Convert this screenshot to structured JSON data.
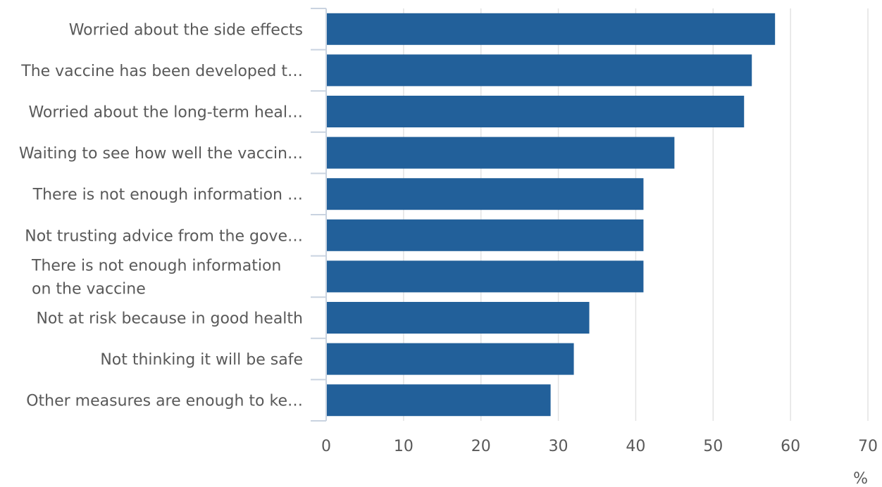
{
  "chart_data": {
    "type": "bar",
    "orientation": "horizontal",
    "title": "",
    "xlabel": "%",
    "ylabel": "",
    "xlim": [
      0,
      70
    ],
    "xticks": [
      0,
      10,
      20,
      30,
      40,
      50,
      60,
      70
    ],
    "grid": true,
    "legend": "none",
    "bar_color": "#22609a",
    "categories": [
      [
        "Worried about the side effects"
      ],
      [
        "The vaccine has been developed t…"
      ],
      [
        "Worried about the long-term heal…"
      ],
      [
        "Waiting to see how well the vaccin…"
      ],
      [
        "There is not enough information …"
      ],
      [
        "Not trusting advice from the gove…"
      ],
      [
        "There is not enough information",
        "on the vaccine"
      ],
      [
        "Not at risk because in good health"
      ],
      [
        "Not thinking it will be safe"
      ],
      [
        "Other measures are enough to ke…"
      ]
    ],
    "values": [
      58,
      55,
      54,
      45,
      41,
      41,
      41,
      34,
      32,
      29
    ]
  }
}
